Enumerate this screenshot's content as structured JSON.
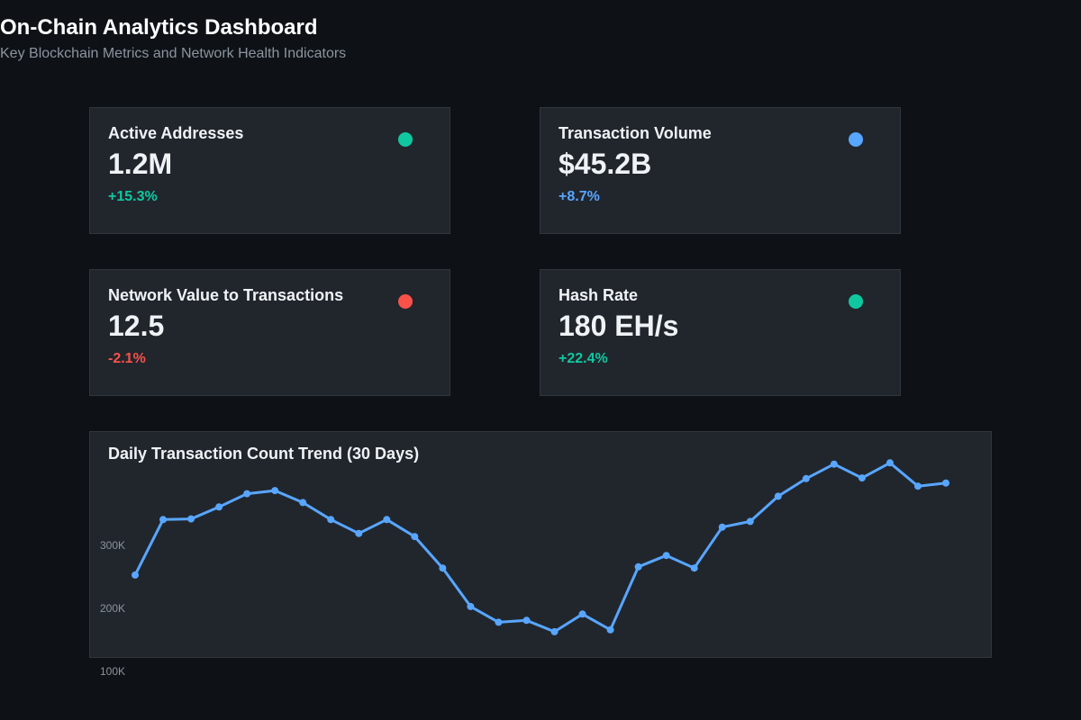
{
  "header": {
    "title": "On-Chain Analytics Dashboard",
    "subtitle": "Key Blockchain Metrics and Network Health Indicators"
  },
  "cards": [
    {
      "label": "Active Addresses",
      "value": "1.2M",
      "change": "+15.3%",
      "color": "#10c8a0"
    },
    {
      "label": "Transaction Volume",
      "value": "$45.2B",
      "change": "+8.7%",
      "color": "#58a6ff"
    },
    {
      "label": "Network Value to Transactions",
      "value": "12.5",
      "change": "-2.1%",
      "color": "#f85149"
    },
    {
      "label": "Hash Rate",
      "value": "180 EH/s",
      "change": "+22.4%",
      "color": "#10c8a0"
    }
  ],
  "chart_data": {
    "type": "line",
    "title": "Daily Transaction Count Trend (30 Days)",
    "xlabel": "",
    "ylabel": "",
    "y_ticks": [
      {
        "value": 300000,
        "label": "300K"
      },
      {
        "value": 200000,
        "label": "200K"
      },
      {
        "value": 100000,
        "label": "100K"
      }
    ],
    "ylim": [
      0,
      400000
    ],
    "grid": false,
    "line_color": "#58a6ff",
    "x": [
      1,
      2,
      3,
      4,
      5,
      6,
      7,
      8,
      9,
      10,
      11,
      12,
      13,
      14,
      15,
      16,
      17,
      18,
      19,
      20,
      21,
      22,
      23,
      24,
      25,
      26,
      27,
      28,
      29,
      30
    ],
    "values": [
      253000,
      341000,
      342000,
      361000,
      382000,
      387000,
      368000,
      341000,
      319000,
      341000,
      314000,
      264000,
      203000,
      178000,
      181000,
      163000,
      191000,
      166000,
      266000,
      284000,
      264000,
      329000,
      338000,
      378000,
      406000,
      429000,
      407000,
      431000,
      394000,
      399000
    ]
  }
}
